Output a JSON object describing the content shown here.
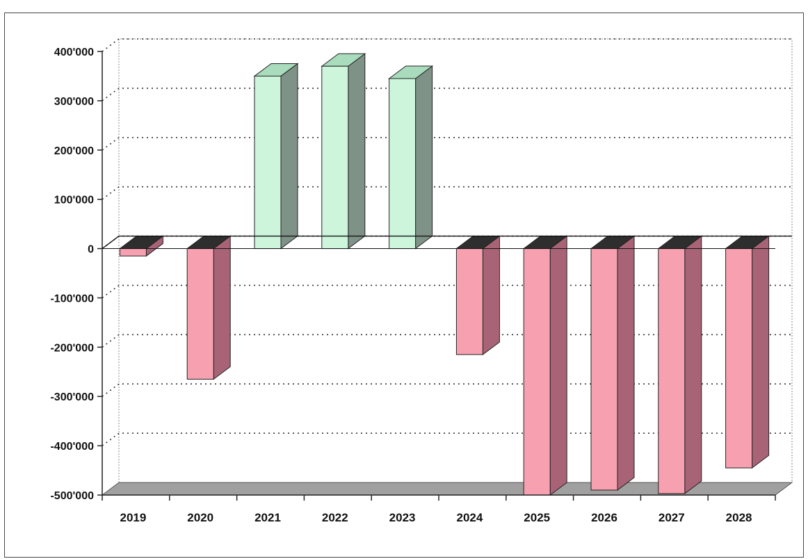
{
  "chart_data": {
    "type": "bar",
    "title": "",
    "xlabel": "",
    "ylabel": "",
    "categories": [
      "2019",
      "2020",
      "2021",
      "2022",
      "2023",
      "2024",
      "2025",
      "2026",
      "2027",
      "2028"
    ],
    "values": [
      -15000,
      -265000,
      350000,
      370000,
      345000,
      -215000,
      -500000,
      -490000,
      -497000,
      -445000
    ],
    "ylim": [
      -500000,
      400000
    ],
    "yticks": [
      400000,
      300000,
      200000,
      100000,
      0,
      -100000,
      -200000,
      -300000,
      -400000,
      -500000
    ],
    "ytick_labels": [
      "400'000",
      "300'000",
      "200'000",
      "100'000",
      "0",
      "-100'000",
      "-200'000",
      "-300'000",
      "-400'000",
      "-500'000"
    ],
    "grid": true,
    "style": "3d-column",
    "colors": {
      "positive_front": "#ccf5dc",
      "positive_side": "#7f9288",
      "positive_top": "#a8dcbc",
      "negative_front": "#f7a0b0",
      "negative_side": "#a86476",
      "negative_top": "#2e2e2e",
      "floor": "#a0a0a0",
      "grid": "#333333"
    }
  }
}
